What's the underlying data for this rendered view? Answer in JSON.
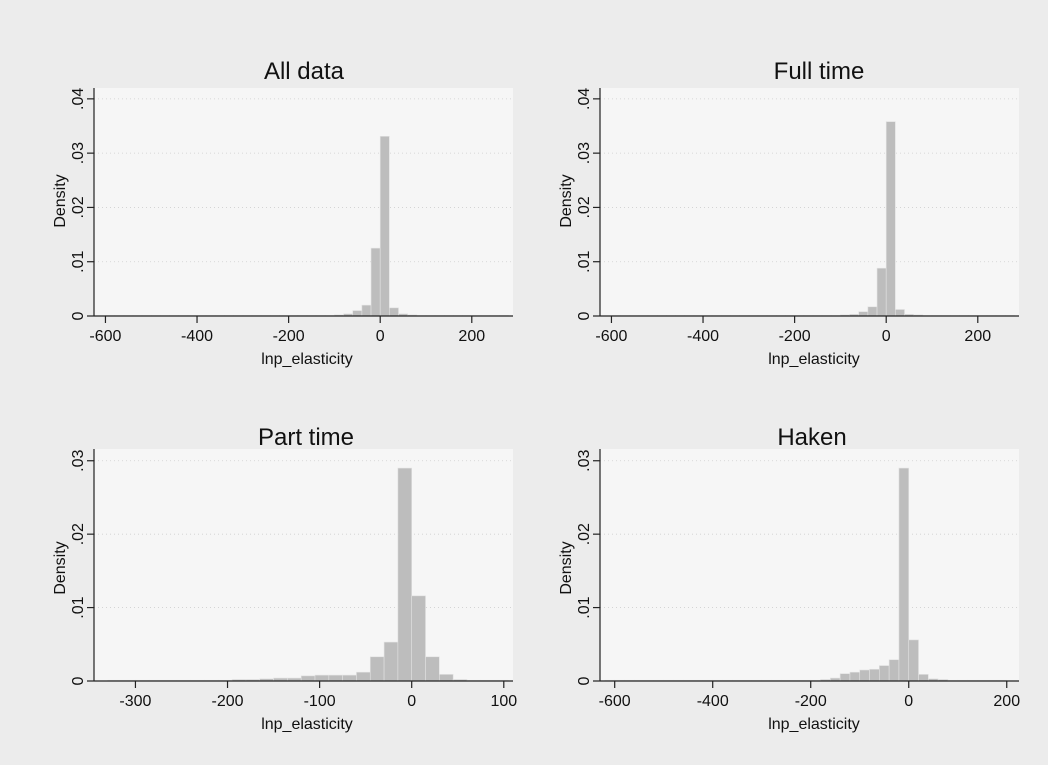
{
  "chart_data": [
    {
      "type": "bar",
      "title": "All data",
      "xlabel": "lnp_elasticity",
      "ylabel": "Density",
      "xlim": [
        -625,
        290
      ],
      "ylim": [
        0,
        0.042
      ],
      "xticks": [
        -600,
        -400,
        -200,
        0,
        200
      ],
      "xtick_labels": [
        "-600",
        "-400",
        "-200",
        "0",
        "200"
      ],
      "yticks": [
        0,
        0.01,
        0.02,
        0.03,
        0.04
      ],
      "ytick_labels": [
        "0",
        ".01",
        ".02",
        ".03",
        ".04"
      ],
      "bin_edges": [
        -600,
        -580,
        -560,
        -540,
        -520,
        -500,
        -480,
        -460,
        -440,
        -420,
        -400,
        -380,
        -360,
        -340,
        -320,
        -300,
        -280,
        -260,
        -240,
        -220,
        -200,
        -180,
        -160,
        -140,
        -120,
        -100,
        -80,
        -60,
        -40,
        -20,
        0,
        20,
        40,
        60,
        80,
        100,
        120,
        140,
        160,
        180,
        200,
        220,
        240,
        260,
        280
      ],
      "values": [
        0.0001,
        0.0001,
        0.0001,
        0.0001,
        0.0001,
        0.0001,
        0.0001,
        0.0001,
        0.0001,
        0.0001,
        0.0001,
        0.0001,
        0.0001,
        0.0001,
        0.0001,
        0.0001,
        0.0001,
        0.0001,
        0.0001,
        0.0001,
        0.0001,
        0.0001,
        0.0001,
        0.0001,
        0.0001,
        0.0002,
        0.0004,
        0.001,
        0.002,
        0.0125,
        0.0331,
        0.0015,
        0.0004,
        0.0002,
        0.0001,
        0.0001,
        0.0001,
        0.0001,
        0.0001,
        0.0001,
        0.0001,
        0.0001,
        0.0001,
        0.0001
      ],
      "grid": true,
      "legend": "none",
      "bar_color": "#bdbdbd"
    },
    {
      "type": "bar",
      "title": "Full time",
      "xlabel": "lnp_elasticity",
      "ylabel": "Density",
      "xlim": [
        -625,
        290
      ],
      "ylim": [
        0,
        0.042
      ],
      "xticks": [
        -600,
        -400,
        -200,
        0,
        200
      ],
      "xtick_labels": [
        "-600",
        "-400",
        "-200",
        "0",
        "200"
      ],
      "yticks": [
        0,
        0.01,
        0.02,
        0.03,
        0.04
      ],
      "ytick_labels": [
        "0",
        ".01",
        ".02",
        ".03",
        ".04"
      ],
      "bin_edges": [
        -600,
        -580,
        -560,
        -540,
        -520,
        -500,
        -480,
        -460,
        -440,
        -420,
        -400,
        -380,
        -360,
        -340,
        -320,
        -300,
        -280,
        -260,
        -240,
        -220,
        -200,
        -180,
        -160,
        -140,
        -120,
        -100,
        -80,
        -60,
        -40,
        -20,
        0,
        20,
        40,
        60,
        80,
        100,
        120,
        140,
        160,
        180,
        200,
        220,
        240,
        260,
        280
      ],
      "values": [
        0.0001,
        0.0001,
        0.0001,
        0.0001,
        0.0001,
        0.0001,
        0.0001,
        0.0001,
        0.0001,
        0.0001,
        0.0001,
        0.0001,
        0.0001,
        0.0001,
        0.0001,
        0.0001,
        0.0001,
        0.0001,
        0.0001,
        0.0001,
        0.0001,
        0.0001,
        0.0001,
        0.0001,
        0.0001,
        0.0002,
        0.0003,
        0.0008,
        0.0017,
        0.0088,
        0.0358,
        0.0012,
        0.0003,
        0.0002,
        0.0001,
        0.0001,
        0.0001,
        0.0001,
        0.0001,
        0.0001,
        0.0001,
        0.0001,
        0.0001,
        0.0001
      ],
      "grid": true,
      "legend": "none",
      "bar_color": "#bdbdbd"
    },
    {
      "type": "bar",
      "title": "Part time",
      "xlabel": "lnp_elasticity",
      "ylabel": "Density",
      "xlim": [
        -345,
        110
      ],
      "ylim": [
        0,
        0.0316
      ],
      "xticks": [
        -300,
        -200,
        -100,
        0,
        100
      ],
      "xtick_labels": [
        "-300",
        "-200",
        "-100",
        "0",
        "100"
      ],
      "yticks": [
        0,
        0.01,
        0.02,
        0.03
      ],
      "ytick_labels": [
        "0",
        ".01",
        ".02",
        ".03"
      ],
      "bin_edges": [
        -330,
        -315,
        -300,
        -285,
        -270,
        -255,
        -240,
        -225,
        -210,
        -195,
        -180,
        -165,
        -150,
        -135,
        -120,
        -105,
        -90,
        -75,
        -60,
        -45,
        -30,
        -15,
        0,
        15,
        30,
        45,
        60,
        75,
        90,
        105
      ],
      "values": [
        0.0001,
        0.0001,
        0.0001,
        0.0001,
        0.0001,
        0.0001,
        0.0001,
        0.0001,
        0.0001,
        0.0002,
        0.0002,
        0.0003,
        0.0004,
        0.0004,
        0.0007,
        0.0008,
        0.0008,
        0.0008,
        0.0012,
        0.0033,
        0.0053,
        0.029,
        0.0116,
        0.0033,
        0.0009,
        0.0002,
        0.0001,
        0.0001,
        0.0001
      ],
      "grid": true,
      "legend": "none",
      "bar_color": "#bdbdbd"
    },
    {
      "type": "bar",
      "title": "Haken",
      "xlabel": "lnp_elasticity",
      "ylabel": "Density",
      "xlim": [
        -630,
        225
      ],
      "ylim": [
        0,
        0.0316
      ],
      "xticks": [
        -600,
        -400,
        -200,
        0,
        200
      ],
      "xtick_labels": [
        "-600",
        "-400",
        "-200",
        "0",
        "200"
      ],
      "yticks": [
        0,
        0.01,
        0.02,
        0.03
      ],
      "ytick_labels": [
        "0",
        ".01",
        ".02",
        ".03"
      ],
      "bin_edges": [
        -620,
        -600,
        -580,
        -560,
        -540,
        -520,
        -500,
        -480,
        -460,
        -440,
        -420,
        -400,
        -380,
        -360,
        -340,
        -320,
        -300,
        -280,
        -260,
        -240,
        -220,
        -200,
        -180,
        -160,
        -140,
        -120,
        -100,
        -80,
        -60,
        -40,
        -20,
        0,
        20,
        40,
        60,
        80,
        100,
        120,
        140,
        160,
        180,
        200
      ],
      "values": [
        0.0001,
        0.0001,
        0.0001,
        0.0001,
        0.0001,
        0.0001,
        0.0001,
        0.0001,
        0.0001,
        0.0001,
        0.0001,
        0.0001,
        0.0001,
        0.0001,
        0.0001,
        0.0001,
        0.0001,
        0.0001,
        0.0001,
        0.0001,
        0.0001,
        0.0001,
        0.0002,
        0.0004,
        0.001,
        0.0012,
        0.0015,
        0.0016,
        0.0021,
        0.0029,
        0.029,
        0.0056,
        0.0009,
        0.0003,
        0.0002,
        0.0001,
        0.0001,
        0.0001,
        0.0001,
        0.0001,
        0.0001
      ],
      "grid": true,
      "legend": "none",
      "bar_color": "#bdbdbd"
    }
  ]
}
